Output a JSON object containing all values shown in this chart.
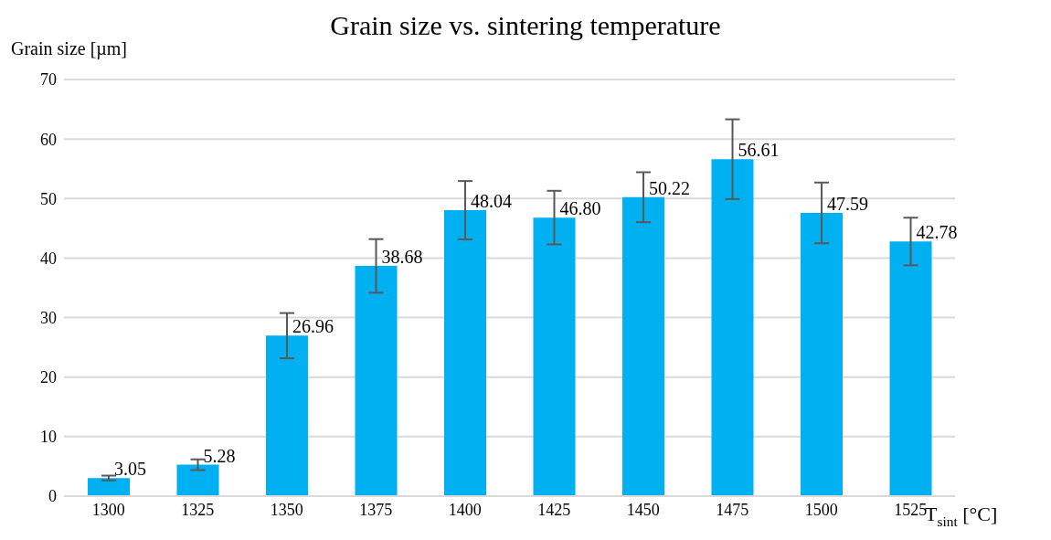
{
  "chart_data": {
    "type": "bar",
    "title": "Grain size vs. sintering temperature",
    "ylabel": "Grain size [µm]",
    "xlabel": "T$_{sint}$ [°C]",
    "categories": [
      "1300",
      "1325",
      "1350",
      "1375",
      "1400",
      "1425",
      "1450",
      "1475",
      "1500",
      "1525"
    ],
    "values": [
      3.05,
      5.28,
      26.96,
      38.68,
      48.04,
      46.8,
      50.22,
      56.61,
      47.59,
      42.78
    ],
    "errors": [
      0.4,
      0.9,
      3.8,
      4.5,
      4.9,
      4.5,
      4.2,
      6.7,
      5.1,
      4.0
    ],
    "value_labels": [
      "3.05",
      "5.28",
      "26.96",
      "38.68",
      "48.04",
      "46.80",
      "50.22",
      "56.61",
      "47.59",
      "42.78"
    ],
    "color": "#00b0f0",
    "ylim": [
      0,
      70
    ],
    "yticks": [
      0,
      10,
      20,
      30,
      40,
      50,
      60,
      70
    ],
    "grid": "y",
    "legend": false
  }
}
